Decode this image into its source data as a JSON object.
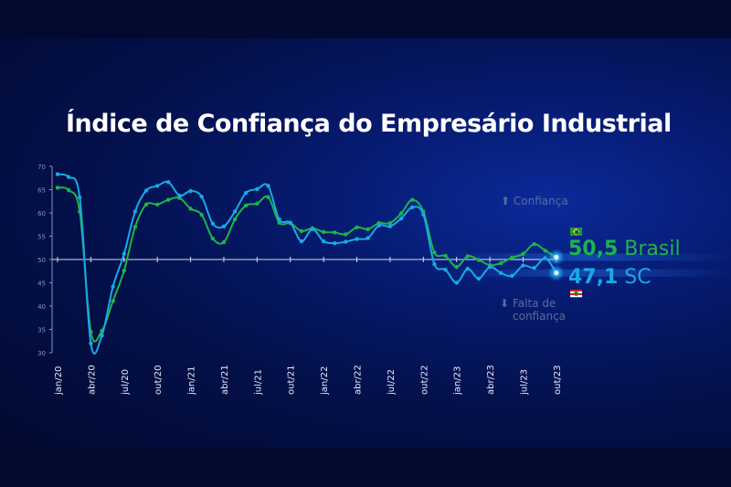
{
  "chart_data": {
    "type": "line",
    "title": "Índice de Confiança do Empresário Industrial",
    "ylim": [
      30,
      70
    ],
    "yticks": [
      "30",
      "35",
      "40",
      "45",
      "50",
      "55",
      "60",
      "65",
      "70"
    ],
    "reference_line": 50,
    "grid": false,
    "xtick_labels": [
      "jan/20",
      "abr/20",
      "jul/20",
      "out/20",
      "jan/21",
      "abr/21",
      "jul/21",
      "out/21",
      "jan/22",
      "abr/22",
      "jul/22",
      "out/22",
      "jan/23",
      "abr/23",
      "jul/23",
      "out/23"
    ],
    "period": "monthly jan/20 – out/23",
    "series": [
      {
        "name": "Brasil",
        "color": "#1db54a",
        "values": [
          65.4,
          64.9,
          60.3,
          34.5,
          34.7,
          41.1,
          47.6,
          57.0,
          61.8,
          61.8,
          62.8,
          63.2,
          60.9,
          59.6,
          54.5,
          53.7,
          58.6,
          61.6,
          62.0,
          63.4,
          57.9,
          57.8,
          56.1,
          56.7,
          55.9,
          55.8,
          55.4,
          56.9,
          56.5,
          57.8,
          57.8,
          59.9,
          62.8,
          60.3,
          51.5,
          50.8,
          48.4,
          50.7,
          49.9,
          48.8,
          49.2,
          50.4,
          51.2,
          53.3,
          51.9,
          50.5
        ]
      },
      {
        "name": "SC",
        "color": "#1aa8e6",
        "values": [
          68.3,
          67.7,
          63.3,
          32.0,
          33.7,
          44.2,
          51.2,
          60.3,
          64.8,
          65.8,
          66.6,
          63.7,
          64.7,
          63.5,
          57.7,
          57.1,
          60.3,
          64.3,
          65.1,
          65.8,
          58.6,
          57.9,
          53.9,
          56.5,
          53.9,
          53.5,
          53.8,
          54.4,
          54.6,
          57.3,
          57.1,
          58.8,
          61.2,
          59.7,
          49.0,
          47.8,
          45.0,
          48.0,
          45.9,
          48.4,
          47.1,
          46.5,
          48.7,
          48.2,
          50.3,
          47.1
        ]
      }
    ],
    "annotations": {
      "above": "Confiança",
      "below": "Falta de confiança",
      "brasil_value": "50,5",
      "brasil_label": "Brasil",
      "sc_value": "47,1",
      "sc_label": "SC"
    }
  }
}
